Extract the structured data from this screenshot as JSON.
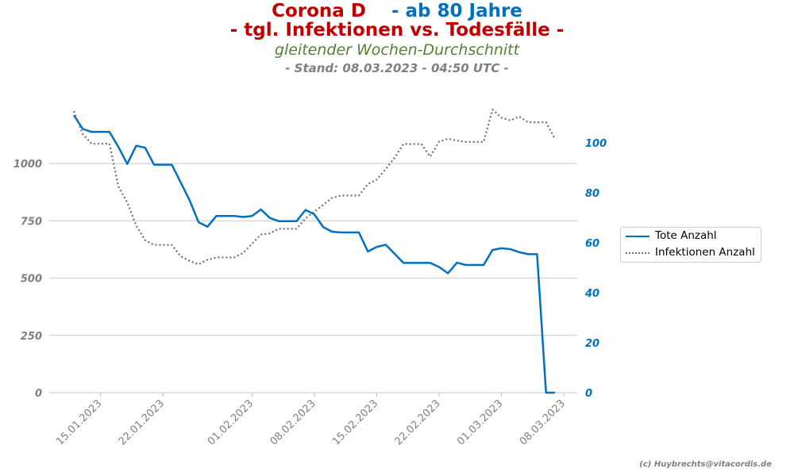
{
  "header": {
    "title_part1": "Corona D",
    "title_part2": "- ab 80 Jahre",
    "title_line2": "- tgl. Infektionen vs. Todesfälle -",
    "subtitle": "gleitender Wochen-Durchschnitt",
    "stand": "- Stand: 08.03.2023 - 04:50 UTC -"
  },
  "colors": {
    "red": "#c00000",
    "blue": "#0070c0",
    "green": "#538135",
    "gray": "#7f7f7f",
    "infections_line": "#707070",
    "grid": "#d0d0d0"
  },
  "legend": {
    "deaths": "Tote Anzahl",
    "infections": "Infektionen Anzahl"
  },
  "copyright": "(c) Huybrechts@vitacordis.de",
  "chart_data": {
    "type": "line",
    "x_labels": [
      "15.01.2023",
      "22.01.2023",
      "01.02.2023",
      "08.02.2023",
      "15.02.2023",
      "22.02.2023",
      "01.03.2023",
      "08.03.2023"
    ],
    "x_start": "2023-01-12",
    "x_end": "2023-03-07",
    "y_left": {
      "ticks": [
        0,
        250,
        500,
        750,
        1000
      ],
      "ylim": [
        0,
        1298
      ]
    },
    "y_right": {
      "ticks": [
        0,
        20,
        40,
        60,
        80,
        100
      ],
      "ylim": [
        0,
        119
      ]
    },
    "grid": true,
    "legend_position": "right",
    "series": [
      {
        "name": "Tote Anzahl",
        "axis": "right",
        "style": "solid",
        "values": [
          111,
          105.5,
          104.3,
          104.3,
          104.3,
          98.3,
          91.5,
          98.8,
          98,
          91.2,
          91.2,
          91.2,
          84.1,
          76.9,
          68.2,
          66.4,
          70.7,
          70.7,
          70.7,
          70.3,
          70.7,
          73.3,
          69.9,
          68.6,
          68.6,
          68.6,
          73.1,
          71.3,
          66.2,
          64.4,
          64.1,
          64.1,
          64.1,
          56.5,
          58.3,
          59.2,
          55.6,
          51.9,
          51.9,
          51.9,
          51.9,
          50.3,
          47.8,
          52,
          51.1,
          51.1,
          51.1,
          57.1,
          57.8,
          57.4,
          56.2,
          55.4,
          55.4,
          0,
          0
        ]
      },
      {
        "name": "Infektionen Anzahl",
        "axis": "left",
        "style": "dotted",
        "values": [
          1228,
          1128,
          1086,
          1086,
          1086,
          900,
          830,
          730,
          665,
          645,
          645,
          645,
          595,
          575,
          560,
          580,
          590,
          590,
          590,
          610,
          650,
          690,
          695,
          715,
          715,
          715,
          760,
          790,
          820,
          850,
          860,
          860,
          860,
          910,
          930,
          975,
          1025,
          1085,
          1085,
          1085,
          1030,
          1095,
          1108,
          1100,
          1094,
          1094,
          1094,
          1235,
          1200,
          1188,
          1205,
          1180,
          1180,
          1180,
          1108
        ]
      }
    ]
  }
}
